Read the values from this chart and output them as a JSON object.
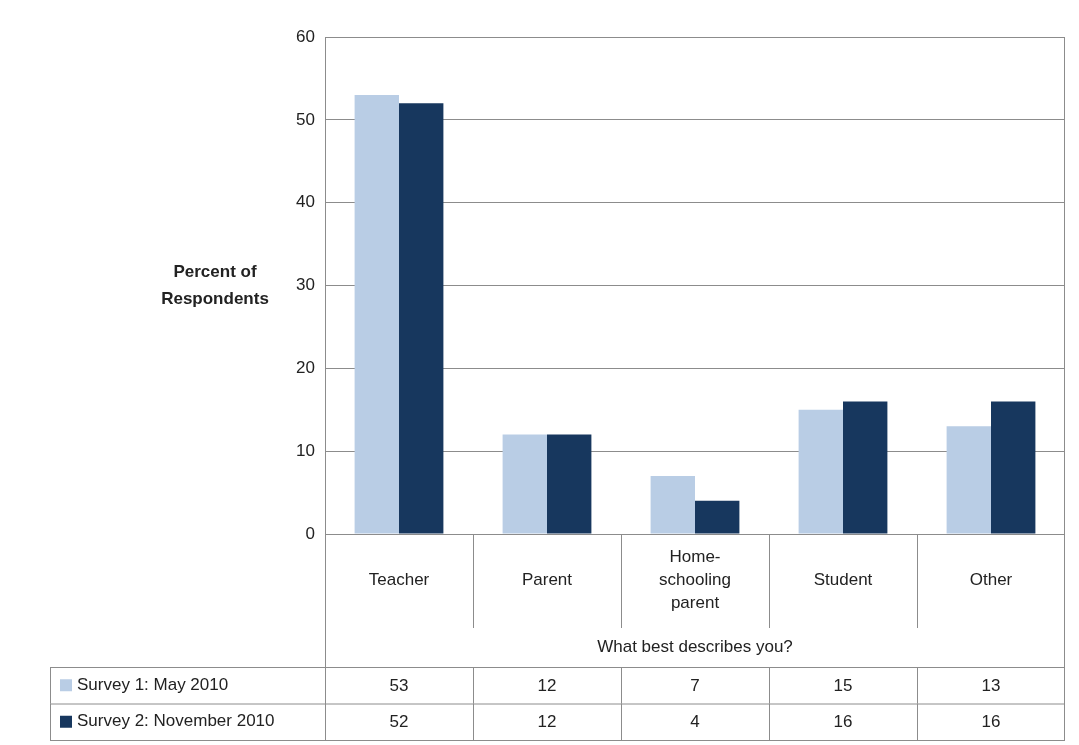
{
  "chart_data": {
    "type": "bar",
    "categories": [
      "Teacher",
      "Parent",
      "Home-schooling parent",
      "Student",
      "Other"
    ],
    "series": [
      {
        "name": "Survey 1: May 2010",
        "color": "#b9cde5",
        "values": [
          53,
          12,
          7,
          15,
          13
        ]
      },
      {
        "name": "Survey 2: November 2010",
        "color": "#17375e",
        "values": [
          52,
          12,
          4,
          16,
          16
        ]
      }
    ],
    "xlabel": "What best describes you?",
    "ylabel": "Percent of Respondents",
    "ylim": [
      0,
      60
    ],
    "yticks": [
      0,
      10,
      20,
      30,
      40,
      50,
      60
    ],
    "grid": "y",
    "legend": "bottom left",
    "data_labels": true
  }
}
